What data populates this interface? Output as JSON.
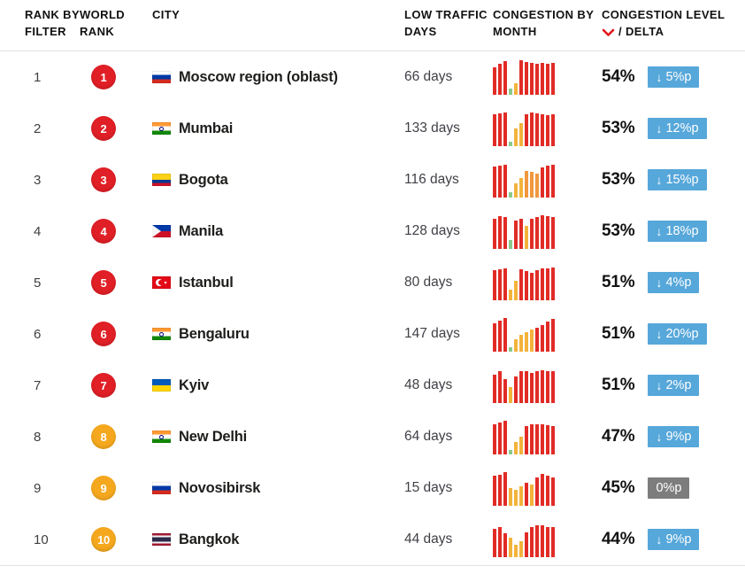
{
  "colors": {
    "badge_red": "#e01f26",
    "badge_orange": "#f5a81e",
    "bar_red": "#e12c26",
    "bar_yellow": "#f3b33c",
    "bar_orange": "#f0983f",
    "bar_green": "#8cc98c",
    "delta_blue": "#56a7da",
    "delta_gray": "#7d7d7d",
    "sort_chevron_red": "#e0161c",
    "divider_gray": "#e2e2e2"
  },
  "header": {
    "col_rank_filter": "RANK BY FILTER",
    "col_world_rank": "WORLD RANK",
    "col_city": "CITY",
    "col_low_traffic": "LOW TRAFFIC DAYS",
    "col_congestion_month": "CONGESTION BY MONTH",
    "col_congestion_level": "CONGESTION LEVEL",
    "col_delta_suffix": "/ DELTA"
  },
  "rows": [
    {
      "filter_rank": "1",
      "world_rank": "1",
      "badge_color": "red",
      "city": "Moscow region (oblast)",
      "country": "Russia",
      "flag": {
        "kind": "stripes",
        "stripes": [
          [
            "#ffffff",
            1
          ],
          [
            "#0039a6",
            1
          ],
          [
            "#d52b1e",
            1
          ]
        ]
      },
      "low_traffic_days": "66 days",
      "congestion_level": "54%",
      "delta": {
        "value": "5%p",
        "direction": "down",
        "style": "blue"
      },
      "monthly": [
        [
          0.78,
          "r"
        ],
        [
          0.88,
          "r"
        ],
        [
          0.95,
          "r"
        ],
        [
          0.18,
          "g"
        ],
        [
          0.33,
          "y"
        ],
        [
          0.97,
          "r"
        ],
        [
          0.92,
          "r"
        ],
        [
          0.9,
          "r"
        ],
        [
          0.88,
          "r"
        ],
        [
          0.9,
          "r"
        ],
        [
          0.88,
          "r"
        ],
        [
          0.9,
          "r"
        ]
      ]
    },
    {
      "filter_rank": "2",
      "world_rank": "2",
      "badge_color": "red",
      "city": "Mumbai",
      "country": "India",
      "flag": {
        "kind": "stripes",
        "emblem": "chakra",
        "stripes": [
          [
            "#ff9933",
            1
          ],
          [
            "#ffffff",
            1
          ],
          [
            "#128807",
            1
          ]
        ]
      },
      "low_traffic_days": "133 days",
      "congestion_level": "53%",
      "delta": {
        "value": "12%p",
        "direction": "down",
        "style": "blue"
      },
      "monthly": [
        [
          0.9,
          "r"
        ],
        [
          0.92,
          "r"
        ],
        [
          0.95,
          "r"
        ],
        [
          0.12,
          "g"
        ],
        [
          0.5,
          "y"
        ],
        [
          0.65,
          "y"
        ],
        [
          0.9,
          "r"
        ],
        [
          0.95,
          "r"
        ],
        [
          0.92,
          "r"
        ],
        [
          0.9,
          "r"
        ],
        [
          0.88,
          "r"
        ],
        [
          0.9,
          "r"
        ]
      ]
    },
    {
      "filter_rank": "3",
      "world_rank": "3",
      "badge_color": "red",
      "city": "Bogota",
      "country": "Colombia",
      "flag": {
        "kind": "stripes",
        "stripes": [
          [
            "#fcd116",
            2
          ],
          [
            "#003893",
            1
          ],
          [
            "#ce1126",
            1
          ]
        ]
      },
      "low_traffic_days": "116 days",
      "congestion_level": "53%",
      "delta": {
        "value": "15%p",
        "direction": "down",
        "style": "blue"
      },
      "monthly": [
        [
          0.88,
          "r"
        ],
        [
          0.9,
          "r"
        ],
        [
          0.92,
          "r"
        ],
        [
          0.15,
          "g"
        ],
        [
          0.4,
          "y"
        ],
        [
          0.55,
          "y"
        ],
        [
          0.75,
          "o"
        ],
        [
          0.72,
          "o"
        ],
        [
          0.68,
          "o"
        ],
        [
          0.85,
          "r"
        ],
        [
          0.9,
          "r"
        ],
        [
          0.92,
          "r"
        ]
      ]
    },
    {
      "filter_rank": "4",
      "world_rank": "4",
      "badge_color": "red",
      "city": "Manila",
      "country": "Philippines",
      "flag": {
        "kind": "bicolor-triangle",
        "top": "#0038a8",
        "bottom": "#ce1126",
        "triangle": "#f5f5f5"
      },
      "low_traffic_days": "128 days",
      "congestion_level": "53%",
      "delta": {
        "value": "18%p",
        "direction": "down",
        "style": "blue"
      },
      "monthly": [
        [
          0.85,
          "r"
        ],
        [
          0.92,
          "r"
        ],
        [
          0.9,
          "r"
        ],
        [
          0.25,
          "g"
        ],
        [
          0.8,
          "r"
        ],
        [
          0.85,
          "r"
        ],
        [
          0.65,
          "y"
        ],
        [
          0.85,
          "r"
        ],
        [
          0.9,
          "r"
        ],
        [
          0.95,
          "r"
        ],
        [
          0.92,
          "r"
        ],
        [
          0.9,
          "r"
        ]
      ]
    },
    {
      "filter_rank": "5",
      "world_rank": "5",
      "badge_color": "red",
      "city": "Istanbul",
      "country": "Turkey",
      "flag": {
        "kind": "crescent",
        "bg": "#e30a17",
        "fg": "#ffffff"
      },
      "low_traffic_days": "80 days",
      "congestion_level": "51%",
      "delta": {
        "value": "4%p",
        "direction": "down",
        "style": "blue"
      },
      "monthly": [
        [
          0.85,
          "r"
        ],
        [
          0.88,
          "r"
        ],
        [
          0.9,
          "r"
        ],
        [
          0.3,
          "y"
        ],
        [
          0.55,
          "y"
        ],
        [
          0.88,
          "r"
        ],
        [
          0.82,
          "r"
        ],
        [
          0.78,
          "r"
        ],
        [
          0.85,
          "r"
        ],
        [
          0.9,
          "r"
        ],
        [
          0.9,
          "r"
        ],
        [
          0.92,
          "r"
        ]
      ]
    },
    {
      "filter_rank": "6",
      "world_rank": "6",
      "badge_color": "red",
      "city": "Bengaluru",
      "country": "India",
      "flag": {
        "kind": "stripes",
        "emblem": "chakra",
        "stripes": [
          [
            "#ff9933",
            1
          ],
          [
            "#ffffff",
            1
          ],
          [
            "#128807",
            1
          ]
        ]
      },
      "low_traffic_days": "147 days",
      "congestion_level": "51%",
      "delta": {
        "value": "20%p",
        "direction": "down",
        "style": "blue"
      },
      "monthly": [
        [
          0.8,
          "r"
        ],
        [
          0.88,
          "r"
        ],
        [
          0.95,
          "r"
        ],
        [
          0.12,
          "g"
        ],
        [
          0.35,
          "y"
        ],
        [
          0.48,
          "y"
        ],
        [
          0.55,
          "y"
        ],
        [
          0.62,
          "y"
        ],
        [
          0.68,
          "r"
        ],
        [
          0.75,
          "r"
        ],
        [
          0.85,
          "r"
        ],
        [
          0.92,
          "r"
        ]
      ]
    },
    {
      "filter_rank": "7",
      "world_rank": "7",
      "badge_color": "red",
      "city": "Kyiv",
      "country": "Ukraine",
      "flag": {
        "kind": "stripes",
        "stripes": [
          [
            "#005bbb",
            1
          ],
          [
            "#ffd500",
            1
          ]
        ]
      },
      "low_traffic_days": "48 days",
      "congestion_level": "51%",
      "delta": {
        "value": "2%p",
        "direction": "down",
        "style": "blue"
      },
      "monthly": [
        [
          0.8,
          "r"
        ],
        [
          0.9,
          "r"
        ],
        [
          0.68,
          "r"
        ],
        [
          0.45,
          "y"
        ],
        [
          0.75,
          "r"
        ],
        [
          0.9,
          "r"
        ],
        [
          0.9,
          "r"
        ],
        [
          0.85,
          "r"
        ],
        [
          0.9,
          "r"
        ],
        [
          0.92,
          "r"
        ],
        [
          0.9,
          "r"
        ],
        [
          0.9,
          "r"
        ]
      ]
    },
    {
      "filter_rank": "8",
      "world_rank": "8",
      "badge_color": "orange",
      "city": "New Delhi",
      "country": "India",
      "flag": {
        "kind": "stripes",
        "emblem": "chakra",
        "stripes": [
          [
            "#ff9933",
            1
          ],
          [
            "#ffffff",
            1
          ],
          [
            "#128807",
            1
          ]
        ]
      },
      "low_traffic_days": "64 days",
      "congestion_level": "47%",
      "delta": {
        "value": "9%p",
        "direction": "down",
        "style": "blue"
      },
      "monthly": [
        [
          0.85,
          "r"
        ],
        [
          0.9,
          "r"
        ],
        [
          0.95,
          "r"
        ],
        [
          0.12,
          "g"
        ],
        [
          0.35,
          "y"
        ],
        [
          0.5,
          "y"
        ],
        [
          0.8,
          "r"
        ],
        [
          0.85,
          "r"
        ],
        [
          0.85,
          "r"
        ],
        [
          0.85,
          "r"
        ],
        [
          0.82,
          "r"
        ],
        [
          0.8,
          "r"
        ]
      ]
    },
    {
      "filter_rank": "9",
      "world_rank": "9",
      "badge_color": "orange",
      "city": "Novosibirsk",
      "country": "Russia",
      "flag": {
        "kind": "stripes",
        "stripes": [
          [
            "#ffffff",
            1
          ],
          [
            "#0039a6",
            1
          ],
          [
            "#d52b1e",
            1
          ]
        ]
      },
      "low_traffic_days": "15 days",
      "congestion_level": "45%",
      "delta": {
        "value": "0%p",
        "direction": "none",
        "style": "gray"
      },
      "monthly": [
        [
          0.85,
          "r"
        ],
        [
          0.88,
          "r"
        ],
        [
          0.95,
          "r"
        ],
        [
          0.5,
          "y"
        ],
        [
          0.45,
          "y"
        ],
        [
          0.55,
          "y"
        ],
        [
          0.65,
          "r"
        ],
        [
          0.6,
          "y"
        ],
        [
          0.8,
          "r"
        ],
        [
          0.9,
          "r"
        ],
        [
          0.85,
          "r"
        ],
        [
          0.8,
          "r"
        ]
      ]
    },
    {
      "filter_rank": "10",
      "world_rank": "10",
      "badge_color": "orange",
      "city": "Bangkok",
      "country": "Thailand",
      "flag": {
        "kind": "stripes",
        "stripes": [
          [
            "#a51931",
            1
          ],
          [
            "#f4f5f8",
            1
          ],
          [
            "#2d2a4a",
            2
          ],
          [
            "#f4f5f8",
            1
          ],
          [
            "#a51931",
            1
          ]
        ]
      },
      "low_traffic_days": "44 days",
      "congestion_level": "44%",
      "delta": {
        "value": "9%p",
        "direction": "down",
        "style": "blue"
      },
      "monthly": [
        [
          0.8,
          "r"
        ],
        [
          0.85,
          "r"
        ],
        [
          0.68,
          "r"
        ],
        [
          0.55,
          "y"
        ],
        [
          0.35,
          "y"
        ],
        [
          0.45,
          "y"
        ],
        [
          0.7,
          "r"
        ],
        [
          0.85,
          "r"
        ],
        [
          0.9,
          "r"
        ],
        [
          0.9,
          "r"
        ],
        [
          0.85,
          "r"
        ],
        [
          0.85,
          "r"
        ]
      ]
    }
  ]
}
